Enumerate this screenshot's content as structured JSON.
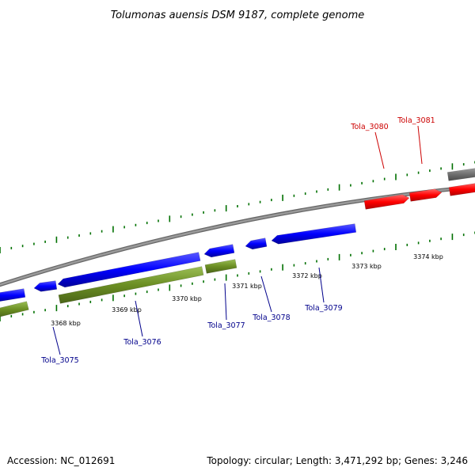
{
  "title": "Tolumonas auensis DSM 9187, complete genome",
  "footer": {
    "accession": "Accession: NC_012691",
    "summary": "Topology: circular; Length: 3,471,292 bp; Genes: 3,246"
  },
  "colors": {
    "forward_gene": "#ff0000",
    "reverse_gene": "#0000ff",
    "cds_feature": "#6b8e23",
    "other_feature": "#707070",
    "backbone": "#888888",
    "tick": "#007000",
    "forward_label": "#cc0000",
    "reverse_label": "#00008b"
  },
  "ticks": [
    {
      "label": "3368 kbp"
    },
    {
      "label": "3369 kbp"
    },
    {
      "label": "3370 kbp"
    },
    {
      "label": "3371 kbp"
    },
    {
      "label": "3372 kbp"
    },
    {
      "label": "3373 kbp"
    },
    {
      "label": "3374 kbp"
    }
  ],
  "genes": [
    {
      "label": "Tola_3075",
      "strand": "reverse"
    },
    {
      "label": "Tola_3076",
      "strand": "reverse"
    },
    {
      "label": "Tola_3077",
      "strand": "reverse"
    },
    {
      "label": "Tola_3078",
      "strand": "reverse"
    },
    {
      "label": "Tola_3079",
      "strand": "reverse"
    },
    {
      "label": "Tola_3080",
      "strand": "forward"
    },
    {
      "label": "Tola_3081",
      "strand": "forward"
    }
  ]
}
